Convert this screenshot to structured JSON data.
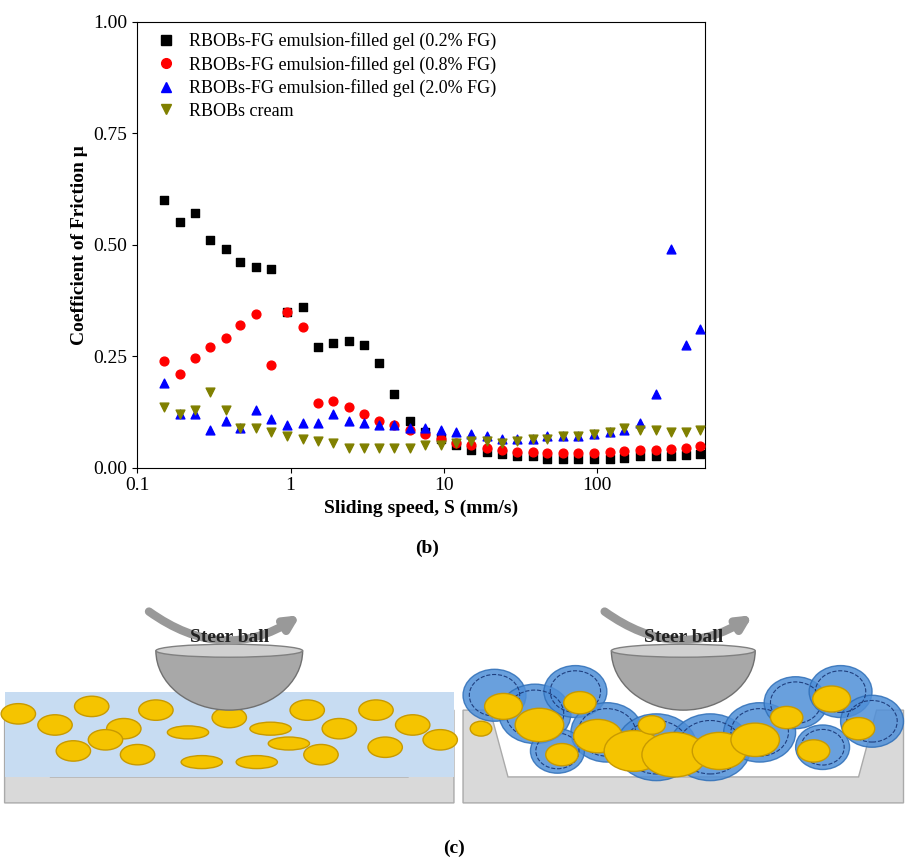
{
  "chart_data": {
    "type": "scatter",
    "x_label": "Sliding speed, S (mm/s)",
    "y_label": "Coefficient of Friction μ",
    "annotations": [
      "(b)"
    ],
    "log": "x",
    "xlim": [
      0.1,
      500
    ],
    "xticks": [
      0.1,
      1,
      10,
      100
    ],
    "ylim": [
      0,
      1
    ],
    "yticks": [
      {
        "value": 0,
        "label": "0.00"
      },
      {
        "value": 0.25,
        "label": "0.25"
      },
      {
        "value": 0.5,
        "label": "0.50"
      },
      {
        "value": 0.75,
        "label": "0.75"
      },
      {
        "value": 1,
        "label": "1.00"
      }
    ],
    "grid": false,
    "legend": "upper left",
    "x": [
      0.15,
      0.19,
      0.24,
      0.3,
      0.38,
      0.47,
      0.6,
      0.75,
      0.95,
      1.2,
      1.5,
      1.9,
      2.4,
      3.0,
      3.8,
      4.7,
      6.0,
      7.5,
      9.5,
      12,
      15,
      19,
      24,
      30,
      38,
      47,
      60,
      75,
      95,
      120,
      150,
      190,
      240,
      300,
      380,
      470
    ],
    "series": [
      {
        "name": "RBOBs-FG emulsion-filled gel (0.2% FG)",
        "color": "#000000",
        "marker": "square",
        "values": [
          0.6,
          0.55,
          0.57,
          0.51,
          0.49,
          0.46,
          0.45,
          0.445,
          0.35,
          0.36,
          0.27,
          0.28,
          0.285,
          0.275,
          0.235,
          0.165,
          0.105,
          0.08,
          0.065,
          0.05,
          0.04,
          0.035,
          0.03,
          0.025,
          0.025,
          0.02,
          0.02,
          0.02,
          0.02,
          0.02,
          0.022,
          0.025,
          0.025,
          0.025,
          0.028,
          0.03
        ]
      },
      {
        "name": "RBOBs-FG emulsion-filled gel (0.8% FG)",
        "color": "#ff0000",
        "marker": "circle",
        "values": [
          0.24,
          0.21,
          0.245,
          0.27,
          0.29,
          0.32,
          0.345,
          0.23,
          0.35,
          0.315,
          0.145,
          0.15,
          0.135,
          0.12,
          0.105,
          0.095,
          0.085,
          0.075,
          0.065,
          0.055,
          0.05,
          0.045,
          0.04,
          0.035,
          0.035,
          0.033,
          0.033,
          0.033,
          0.033,
          0.035,
          0.038,
          0.04,
          0.04,
          0.042,
          0.045,
          0.048
        ]
      },
      {
        "name": "RBOBs-FG emulsion-filled gel (2.0% FG)",
        "color": "#0000ff",
        "marker": "triangle_up",
        "values": [
          0.19,
          0.12,
          0.12,
          0.085,
          0.105,
          0.09,
          0.13,
          0.11,
          0.095,
          0.1,
          0.1,
          0.12,
          0.105,
          0.1,
          0.095,
          0.095,
          0.09,
          0.09,
          0.085,
          0.08,
          0.075,
          0.07,
          0.065,
          0.065,
          0.065,
          0.07,
          0.07,
          0.07,
          0.075,
          0.08,
          0.085,
          0.1,
          0.165,
          0.49,
          0.275,
          0.31
        ]
      },
      {
        "name": "RBOBs cream",
        "color": "#808000",
        "marker": "triangle_down",
        "values": [
          0.135,
          0.12,
          0.13,
          0.17,
          0.13,
          0.09,
          0.09,
          0.08,
          0.07,
          0.065,
          0.06,
          0.055,
          0.045,
          0.045,
          0.045,
          0.045,
          0.045,
          0.05,
          0.05,
          0.055,
          0.06,
          0.06,
          0.055,
          0.06,
          0.065,
          0.065,
          0.07,
          0.07,
          0.075,
          0.08,
          0.09,
          0.085,
          0.085,
          0.08,
          0.08,
          0.085
        ]
      }
    ]
  },
  "diagram": {
    "caption": "(c)",
    "panels": [
      {
        "label": "Steer ball"
      },
      {
        "label": "Steer ball"
      }
    ]
  }
}
